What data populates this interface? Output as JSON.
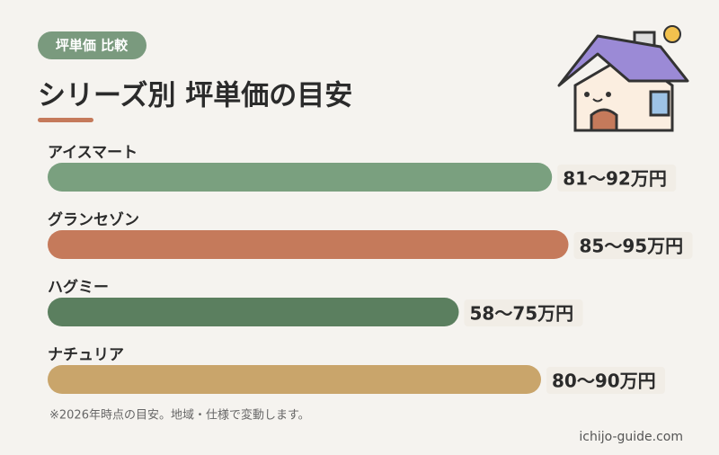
{
  "chart_data": {
    "type": "bar",
    "badge": "坪単価 比較",
    "title": "シリーズ別 坪単価の目安",
    "categories": [
      "アイスマート",
      "グランセゾン",
      "ハグミー",
      "ナチュリア"
    ],
    "ranges": [
      [
        81,
        92
      ],
      [
        85,
        95
      ],
      [
        58,
        75
      ],
      [
        80,
        90
      ]
    ],
    "value_labels": [
      "81〜92万円",
      "85〜95万円",
      "58〜75万円",
      "80〜90万円"
    ],
    "colors": [
      "#7aa07f",
      "#c57a5b",
      "#5b7f5f",
      "#c9a56b"
    ],
    "xlim": [
      0,
      100
    ],
    "note": "※2026年時点の目安。地域・仕様で変動します。",
    "source": "ichijo-guide.com"
  }
}
